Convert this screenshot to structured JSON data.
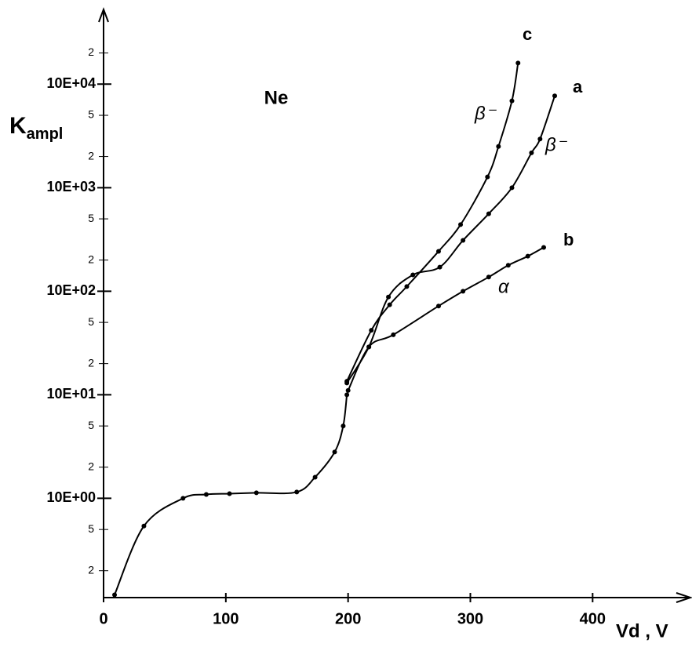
{
  "chart_data": {
    "type": "line",
    "title": "Ne",
    "y_label": {
      "text": "K",
      "sub": "ampl"
    },
    "x_label": "Vd , V",
    "log_y": true,
    "color": "#000000",
    "xlim": [
      0,
      480
    ],
    "xticks": [
      0,
      100,
      200,
      300,
      400
    ],
    "ylim": [
      0.11,
      50000
    ],
    "yticks": [
      {
        "value": 0.2,
        "label": "2"
      },
      {
        "value": 0.5,
        "label": "5"
      },
      {
        "value": 1,
        "label": "10E+00"
      },
      2,
      5,
      {
        "value": 10,
        "label": "10E+01"
      },
      {
        "value": 20,
        "label": "2"
      },
      {
        "value": 50,
        "label": "5"
      },
      {
        "value": 100,
        "label": "10E+02"
      },
      {
        "value": 200,
        "label": "2"
      },
      {
        "value": 500,
        "label": "5"
      },
      {
        "value": 1000,
        "label": "10E+03"
      },
      {
        "value": 2000,
        "label": "2"
      },
      {
        "value": 5000,
        "label": "5"
      },
      {
        "value": 10000,
        "label": "10E+04"
      },
      {
        "value": 20000,
        "label": "2"
      }
    ],
    "series": [
      {
        "x": [
          9,
          33,
          65,
          84,
          103,
          125,
          158,
          173,
          189,
          196,
          199
        ],
        "values": [
          0.117,
          0.54,
          1.0,
          1.09,
          1.11,
          1.13,
          1.15,
          1.6,
          2.8,
          5,
          10
        ]
      },
      {
        "name": "c",
        "x": [
          199,
          219,
          234,
          248,
          274,
          292,
          314,
          323,
          334,
          339
        ],
        "values": [
          13.5,
          42,
          74,
          111,
          243,
          440,
          1270,
          2500,
          6900,
          16000
        ]
      },
      {
        "name": "a",
        "x": [
          199,
          217,
          233,
          253,
          275,
          294,
          315,
          334,
          350,
          357,
          369
        ],
        "values": [
          13,
          29,
          88,
          144,
          171,
          310,
          560,
          1000,
          2170,
          2950,
          7700
        ]
      },
      {
        "name": "b",
        "x": [
          200,
          217,
          237,
          274,
          294,
          315,
          331,
          347,
          360
        ],
        "values": [
          11,
          29,
          38,
          72,
          100,
          137,
          178,
          218,
          265
        ]
      }
    ],
    "annotations": [
      "β⁻",
      "β⁻",
      "α"
    ]
  }
}
